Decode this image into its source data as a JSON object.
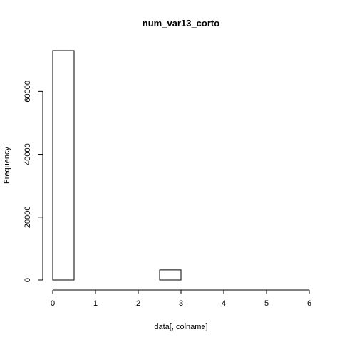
{
  "chart_data": {
    "type": "bar",
    "title": "num_var13_corto",
    "xlabel": "data[, colname]",
    "ylabel": "Frequency",
    "xlim": [
      0,
      6
    ],
    "ylim": [
      0,
      73000
    ],
    "x_ticks": [
      0,
      1,
      2,
      3,
      4,
      5,
      6
    ],
    "y_ticks": [
      0,
      20000,
      40000,
      60000
    ],
    "bins": [
      {
        "x0": 0.0,
        "x1": 0.5,
        "count": 73000
      },
      {
        "x0": 0.5,
        "x1": 1.0,
        "count": 0
      },
      {
        "x0": 1.0,
        "x1": 1.5,
        "count": 0
      },
      {
        "x0": 1.5,
        "x1": 2.0,
        "count": 0
      },
      {
        "x0": 2.0,
        "x1": 2.5,
        "count": 0
      },
      {
        "x0": 2.5,
        "x1": 3.0,
        "count": 3200
      },
      {
        "x0": 3.0,
        "x1": 3.5,
        "count": 0
      },
      {
        "x0": 3.5,
        "x1": 4.0,
        "count": 0
      },
      {
        "x0": 4.0,
        "x1": 4.5,
        "count": 0
      },
      {
        "x0": 4.5,
        "x1": 5.0,
        "count": 0
      },
      {
        "x0": 5.0,
        "x1": 5.5,
        "count": 0
      },
      {
        "x0": 5.5,
        "x1": 6.0,
        "count": 0
      }
    ],
    "grid": false,
    "legend": "none"
  }
}
